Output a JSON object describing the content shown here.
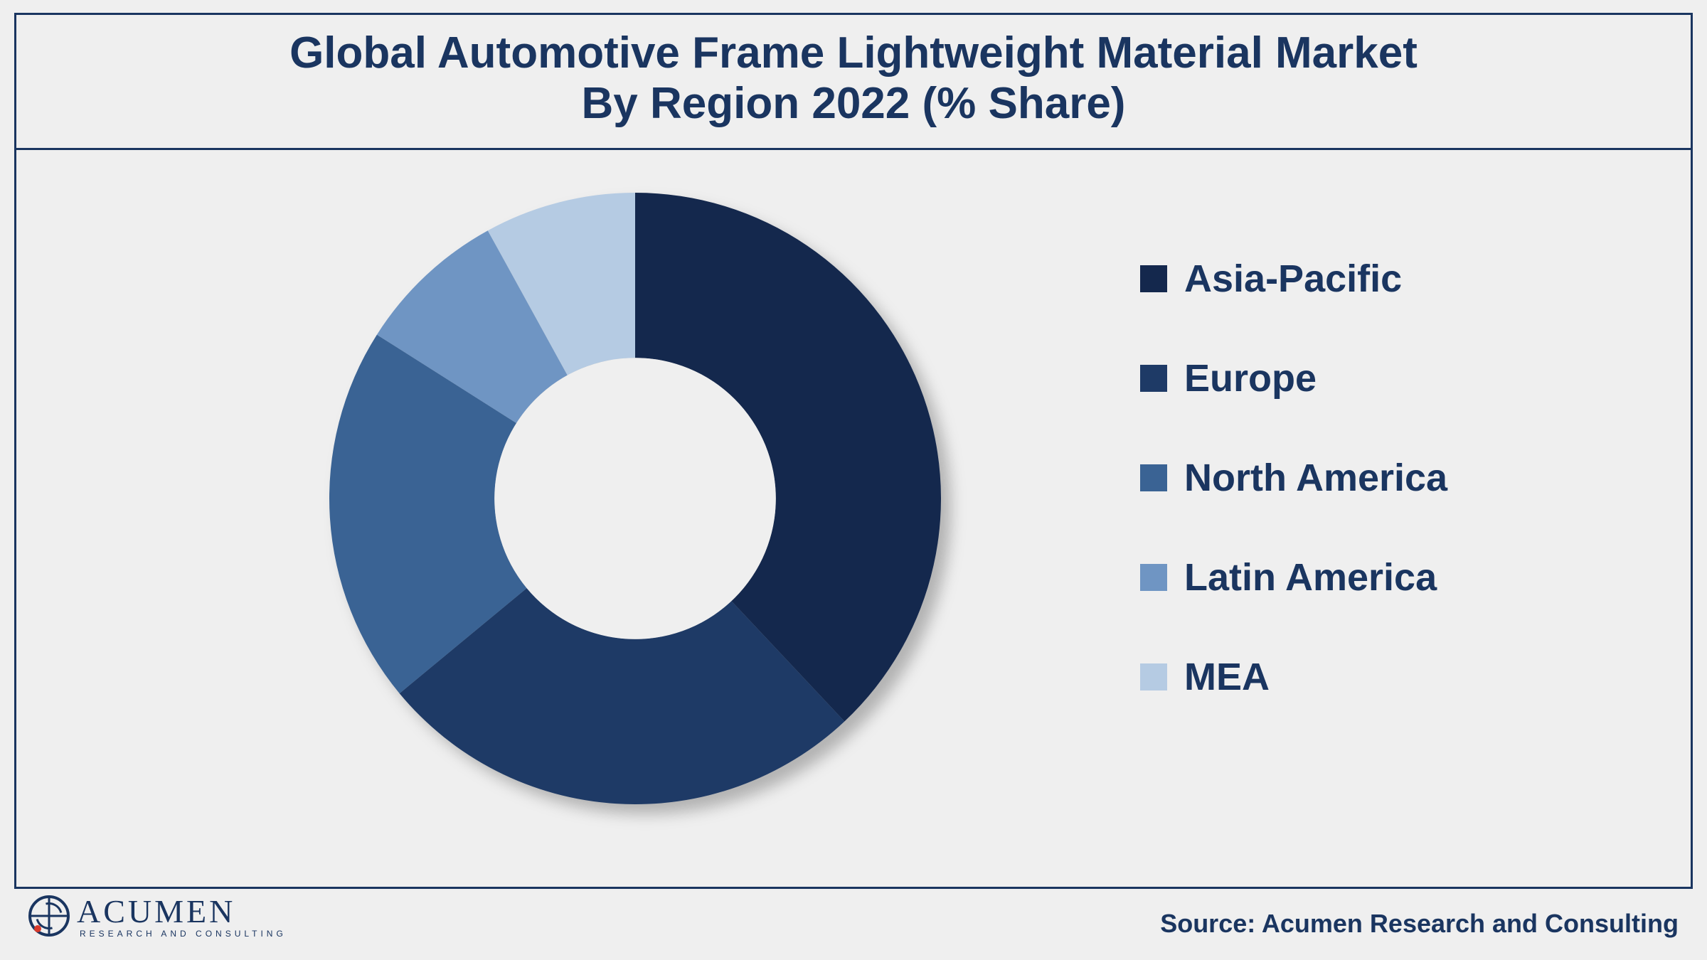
{
  "title": {
    "line1": "Global Automotive Frame Lightweight Material Market",
    "line2": "By Region 2022 (% Share)",
    "color": "#1a3560",
    "fontsize": 62
  },
  "chart": {
    "type": "donut",
    "background_color": "#efefef",
    "inner_radius_ratio": 0.46,
    "start_angle_deg": 0,
    "direction": "clockwise",
    "shadow": {
      "dx": 14,
      "dy": 14,
      "blur": 10,
      "color": "rgba(0,0,0,0.25)"
    },
    "series": [
      {
        "label": "Asia-Pacific",
        "value": 38,
        "color": "#14284d"
      },
      {
        "label": "Europe",
        "value": 26,
        "color": "#1e3a66"
      },
      {
        "label": "North America",
        "value": 20,
        "color": "#3a6394"
      },
      {
        "label": "Latin America",
        "value": 8,
        "color": "#6f95c3"
      },
      {
        "label": "MEA",
        "value": 8,
        "color": "#b5cbe3"
      }
    ]
  },
  "legend": {
    "marker_size": 38,
    "font_size": 54,
    "font_weight": "bold",
    "text_color": "#1a3560",
    "gap": 78
  },
  "logo": {
    "name": "ACUMEN",
    "tagline": "RESEARCH AND CONSULTING",
    "color": "#1a3560",
    "accent": "#d93a2b"
  },
  "source": "Source: Acumen Research and Consulting",
  "frame_border_color": "#1a3560"
}
